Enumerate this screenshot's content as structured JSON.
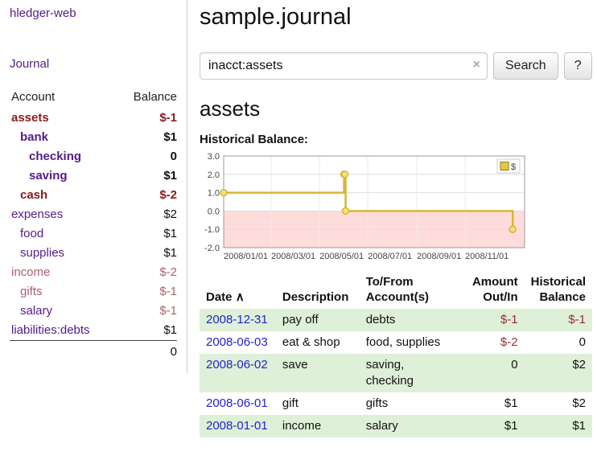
{
  "app": {
    "brand": "hledger-web",
    "nav": {
      "journal": "Journal"
    }
  },
  "sidebar": {
    "columns": {
      "account": "Account",
      "balance": "Balance"
    },
    "accounts": [
      {
        "name": "assets",
        "balance": "$-1",
        "indent": 0,
        "bold": true,
        "name_color": "red",
        "balance_color": "red"
      },
      {
        "name": "bank",
        "balance": "$1",
        "indent": 1,
        "bold": true,
        "name_color": "purple",
        "balance_color": "black"
      },
      {
        "name": "checking",
        "balance": "0",
        "indent": 2,
        "bold": true,
        "name_color": "purple",
        "balance_color": "black"
      },
      {
        "name": "saving",
        "balance": "$1",
        "indent": 2,
        "bold": true,
        "name_color": "purple",
        "balance_color": "black"
      },
      {
        "name": "cash",
        "balance": "$-2",
        "indent": 1,
        "bold": true,
        "name_color": "red",
        "balance_color": "red"
      },
      {
        "name": "expenses",
        "balance": "$2",
        "indent": 0,
        "bold": false,
        "name_color": "purple",
        "balance_color": "black"
      },
      {
        "name": "food",
        "balance": "$1",
        "indent": 1,
        "bold": false,
        "name_color": "purple",
        "balance_color": "black"
      },
      {
        "name": "supplies",
        "balance": "$1",
        "indent": 1,
        "bold": false,
        "name_color": "purple",
        "balance_color": "black"
      },
      {
        "name": "income",
        "balance": "$-2",
        "indent": 0,
        "bold": false,
        "name_color": "rose",
        "balance_color": "rose"
      },
      {
        "name": "gifts",
        "balance": "$-1",
        "indent": 1,
        "bold": false,
        "name_color": "rose",
        "balance_color": "rose"
      },
      {
        "name": "salary",
        "balance": "$-1",
        "indent": 1,
        "bold": false,
        "name_color": "purple",
        "balance_color": "rose"
      },
      {
        "name": "liabilities:debts",
        "balance": "$1",
        "indent": 0,
        "bold": false,
        "name_color": "purple",
        "balance_color": "black"
      }
    ],
    "total": "0"
  },
  "main": {
    "title": "sample.journal",
    "search": {
      "value": "inacct:assets",
      "clear_icon": "×",
      "button": "Search",
      "help_button": "?"
    },
    "account_heading": "assets",
    "chart_heading": "Historical Balance:"
  },
  "chart_data": {
    "type": "line",
    "step": "after",
    "title": "Historical Balance",
    "legend": {
      "label": "$",
      "position": "top-right"
    },
    "series": [
      {
        "name": "$",
        "color": "#d6b53a",
        "points": [
          [
            "2008-01-01",
            1
          ],
          [
            "2008-06-01",
            2
          ],
          [
            "2008-06-02",
            2
          ],
          [
            "2008-06-03",
            0
          ],
          [
            "2008-12-31",
            -1
          ]
        ]
      }
    ],
    "x_domain": [
      "2008-01-01",
      "2009-01-15"
    ],
    "ylim": [
      -2,
      3
    ],
    "y_ticks": [
      "3.0",
      "2.0",
      "1.0",
      "0.0",
      "-1.0",
      "-2.0"
    ],
    "x_ticks": [
      {
        "label": "2008/01/01",
        "date": "2008-01-01"
      },
      {
        "label": "2008/03/01",
        "date": "2008-03-01"
      },
      {
        "label": "2008/05/01",
        "date": "2008-05-01"
      },
      {
        "label": "2008/07/01",
        "date": "2008-07-01"
      },
      {
        "label": "2008/09/01",
        "date": "2008-09-01"
      },
      {
        "label": "2008/11/01",
        "date": "2008-11-01"
      }
    ],
    "negative_fill": "#ffdcdc",
    "grid": true
  },
  "register": {
    "headers": {
      "date": "Date",
      "sort": "∧",
      "description": "Description",
      "tofrom1": "To/From",
      "tofrom2": "Account(s)",
      "amount1": "Amount",
      "amount2": "Out/In",
      "bal1": "Historical",
      "bal2": "Balance"
    },
    "rows": [
      {
        "date": "2008-12-31",
        "description": "pay off",
        "accounts": "debts",
        "amount": "$-1",
        "amount_neg": true,
        "balance": "$-1",
        "balance_neg": true,
        "shaded": true
      },
      {
        "date": "2008-06-03",
        "description": "eat & shop",
        "accounts": "food, supplies",
        "amount": "$-2",
        "amount_neg": true,
        "balance": "0",
        "balance_neg": false,
        "shaded": false
      },
      {
        "date": "2008-06-02",
        "description": "save",
        "accounts": "saving, checking",
        "amount": "0",
        "amount_neg": false,
        "balance": "$2",
        "balance_neg": false,
        "shaded": true
      },
      {
        "date": "2008-06-01",
        "description": "gift",
        "accounts": "gifts",
        "amount": "$1",
        "amount_neg": false,
        "balance": "$2",
        "balance_neg": false,
        "shaded": false
      },
      {
        "date": "2008-01-01",
        "description": "income",
        "accounts": "salary",
        "amount": "$1",
        "amount_neg": false,
        "balance": "$1",
        "balance_neg": false,
        "shaded": true
      }
    ]
  }
}
